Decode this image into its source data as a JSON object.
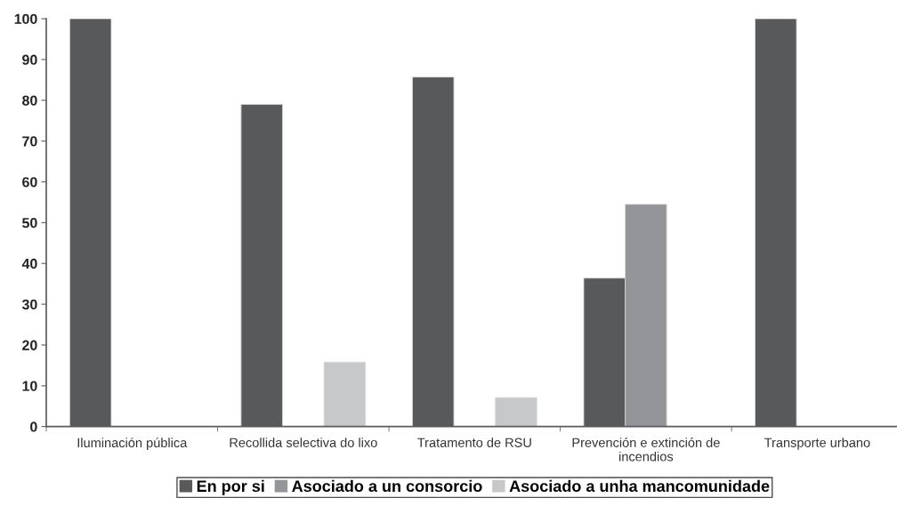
{
  "chart_data": {
    "type": "bar",
    "categories": [
      "Iluminación pública",
      "Recollida selectiva do lixo",
      "Tratamento de RSU",
      "Prevención e extinción de incendios",
      "Transporte urbano"
    ],
    "series": [
      {
        "name": "En por si",
        "color": "#58595b",
        "values": [
          100,
          79,
          85.7,
          36.4,
          100
        ]
      },
      {
        "name": "Asociado a un consorcio",
        "color": "#939598",
        "values": [
          null,
          null,
          null,
          54.5,
          null
        ]
      },
      {
        "name": "Asociado a unha mancomunidade",
        "color": "#c7c8ca",
        "values": [
          null,
          15.8,
          7.1,
          null,
          null
        ]
      }
    ],
    "ylim": [
      0,
      100
    ],
    "yticks": [
      0,
      10,
      20,
      30,
      40,
      50,
      60,
      70,
      80,
      90,
      100
    ],
    "grid": false,
    "legend": "bottom"
  }
}
